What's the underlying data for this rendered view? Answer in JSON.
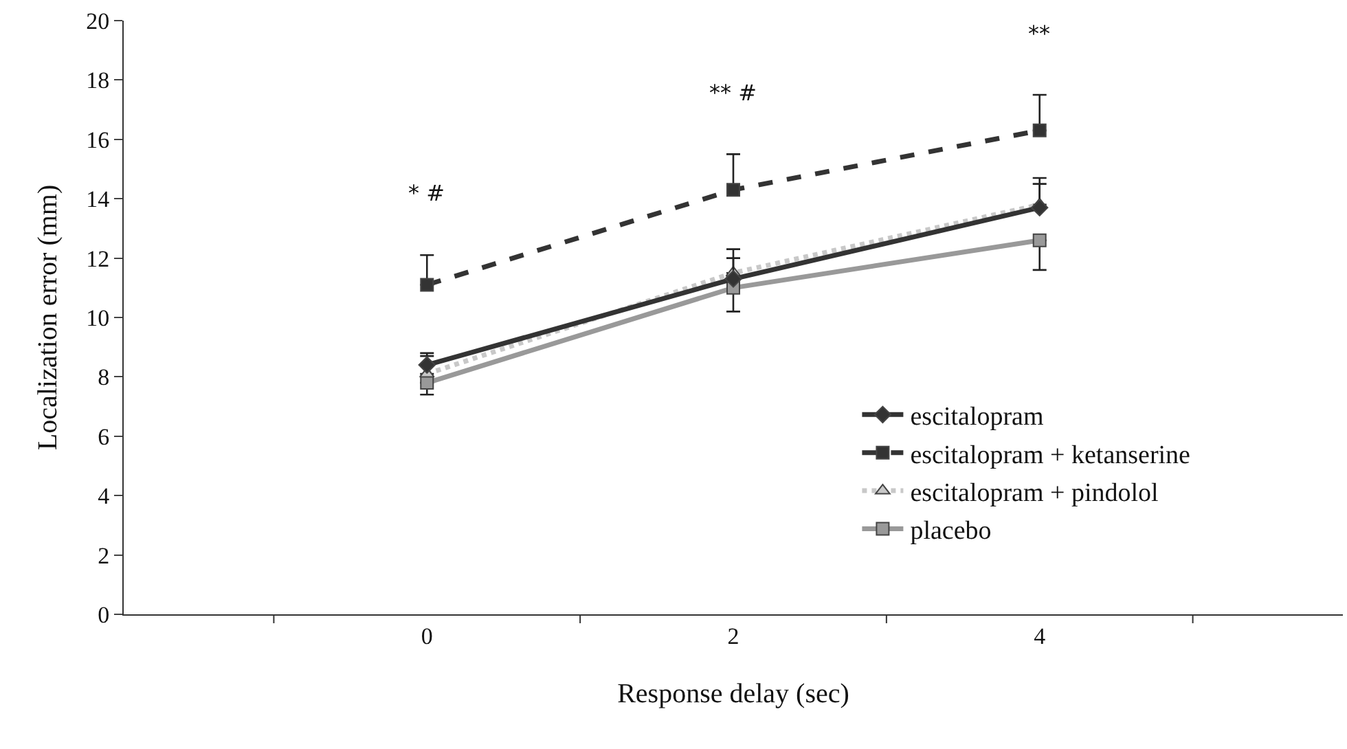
{
  "chart_data": {
    "type": "line",
    "xlabel": "Response delay (sec)",
    "ylabel": "Localization error (mm)",
    "categories": [
      "0",
      "2",
      "4"
    ],
    "series": [
      {
        "name": "escitalopram",
        "color": "#333333",
        "marker": "diamond",
        "line_style": "solid",
        "values": [
          8.4,
          11.3,
          13.7
        ],
        "errors": [
          [
            8.4,
            8.8
          ],
          [
            11.3,
            12.0
          ],
          [
            13.7,
            14.5
          ]
        ]
      },
      {
        "name": "escitalopram + ketanserine",
        "color": "#333333",
        "marker": "square",
        "line_style": "dashed",
        "values": [
          11.1,
          14.3,
          16.3
        ],
        "errors": [
          [
            11.1,
            12.1
          ],
          [
            14.3,
            15.5
          ],
          [
            16.3,
            17.5
          ]
        ]
      },
      {
        "name": "escitalopram + pindolol",
        "color": "#c8c8c8",
        "marker": "triangle",
        "line_style": "dotted",
        "values": [
          8.1,
          11.5,
          13.8
        ],
        "errors": [
          [
            8.1,
            8.7
          ],
          [
            11.5,
            12.3
          ],
          [
            13.8,
            14.7
          ]
        ]
      },
      {
        "name": "placebo",
        "color": "#999999",
        "marker": "square",
        "line_style": "solid",
        "values": [
          7.8,
          11.0,
          12.6
        ],
        "errors": [
          [
            7.4,
            7.8
          ],
          [
            10.2,
            11.0
          ],
          [
            11.6,
            12.6
          ]
        ]
      }
    ],
    "ylim": [
      0,
      20
    ],
    "yticks": [
      0,
      2,
      4,
      6,
      8,
      10,
      12,
      14,
      16,
      18,
      20
    ],
    "legend": "bottom right",
    "annotations": [
      "* #",
      "** #",
      "**"
    ]
  }
}
